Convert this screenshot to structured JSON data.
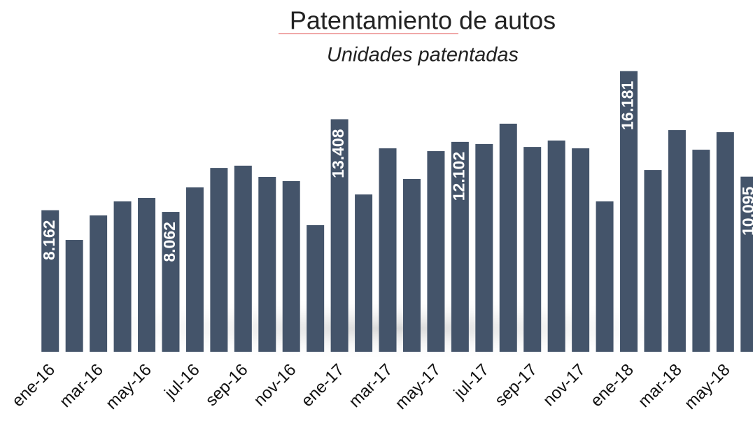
{
  "chart_data": {
    "type": "bar",
    "title": "Patentamiento de autos",
    "subtitle": "Unidades patentadas",
    "categories": [
      "ene-16",
      null,
      "mar-16",
      null,
      "may-16",
      null,
      "jul-16",
      null,
      "sep-16",
      null,
      "nov-16",
      null,
      "ene-17",
      null,
      "mar-17",
      null,
      "may-17",
      null,
      "jul-17",
      null,
      "sep-17",
      null,
      "nov-17",
      null,
      "ene-18",
      null,
      "mar-18",
      null,
      "may-18",
      null
    ],
    "values": [
      8162,
      6450,
      7860,
      8670,
      8870,
      8062,
      9480,
      10600,
      10730,
      10080,
      9840,
      7300,
      13408,
      9070,
      11730,
      9960,
      11570,
      12102,
      11980,
      13150,
      11810,
      12180,
      11730,
      8670,
      16181,
      10480,
      12780,
      11650,
      12660,
      10095
    ],
    "value_labels": [
      "8.162",
      null,
      null,
      null,
      null,
      "8.062",
      null,
      null,
      null,
      null,
      null,
      null,
      "13.408",
      null,
      null,
      null,
      null,
      "12.102",
      null,
      null,
      null,
      null,
      null,
      null,
      "16.181",
      null,
      null,
      null,
      null,
      "10.095"
    ],
    "color": "#44546a",
    "ylim": [
      0,
      16250
    ]
  }
}
